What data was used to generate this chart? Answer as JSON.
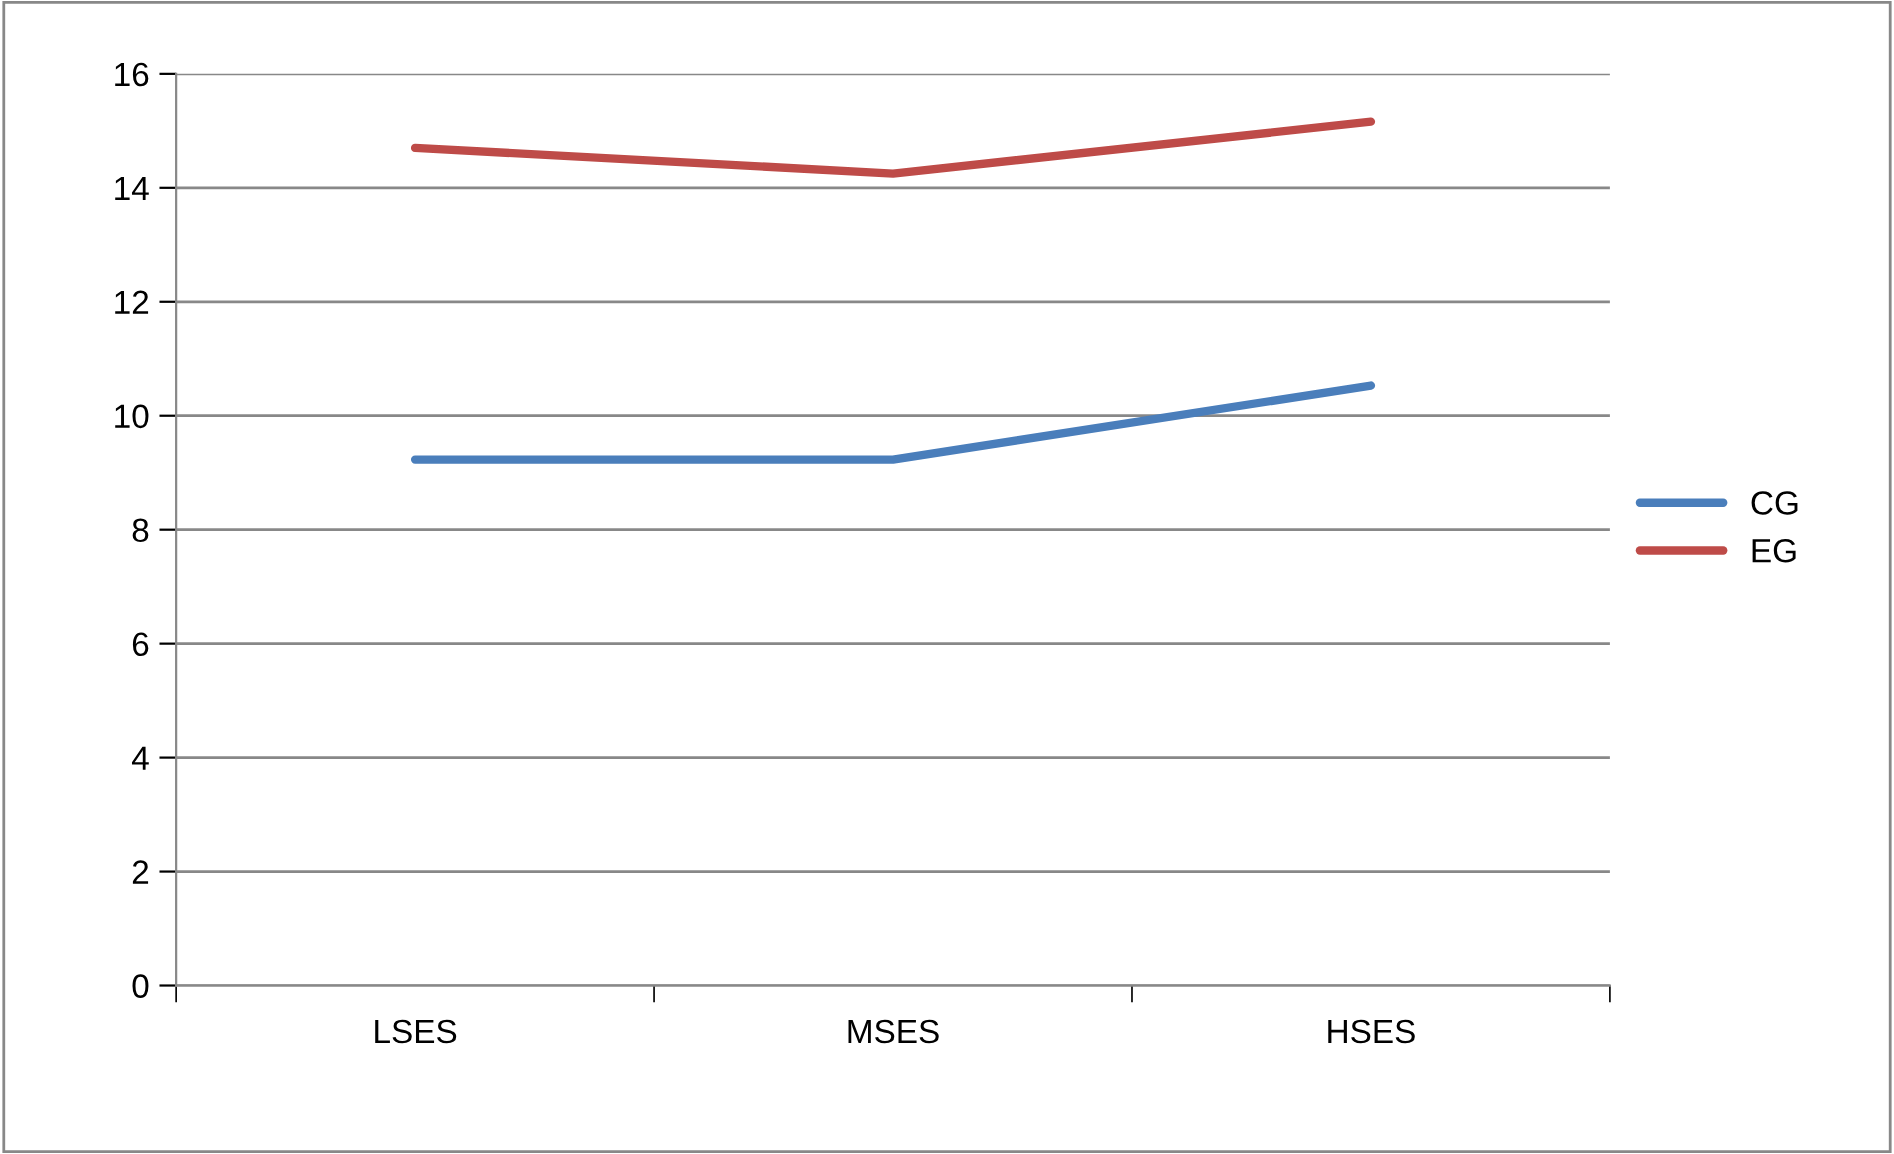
{
  "chart_data": {
    "type": "line",
    "categories": [
      "LSES",
      "MSES",
      "HSES"
    ],
    "series": [
      {
        "name": "CG",
        "color": "#4a7ebb",
        "values": [
          9.23,
          9.23,
          10.53
        ]
      },
      {
        "name": "EG",
        "color": "#be4b48",
        "values": [
          14.7,
          14.25,
          15.16
        ]
      }
    ],
    "ylim": [
      0,
      16
    ],
    "yticks": [
      0,
      2,
      4,
      6,
      8,
      10,
      12,
      14,
      16
    ],
    "grid": "y",
    "legend": "right",
    "marker": "none",
    "line_style": "solid"
  }
}
